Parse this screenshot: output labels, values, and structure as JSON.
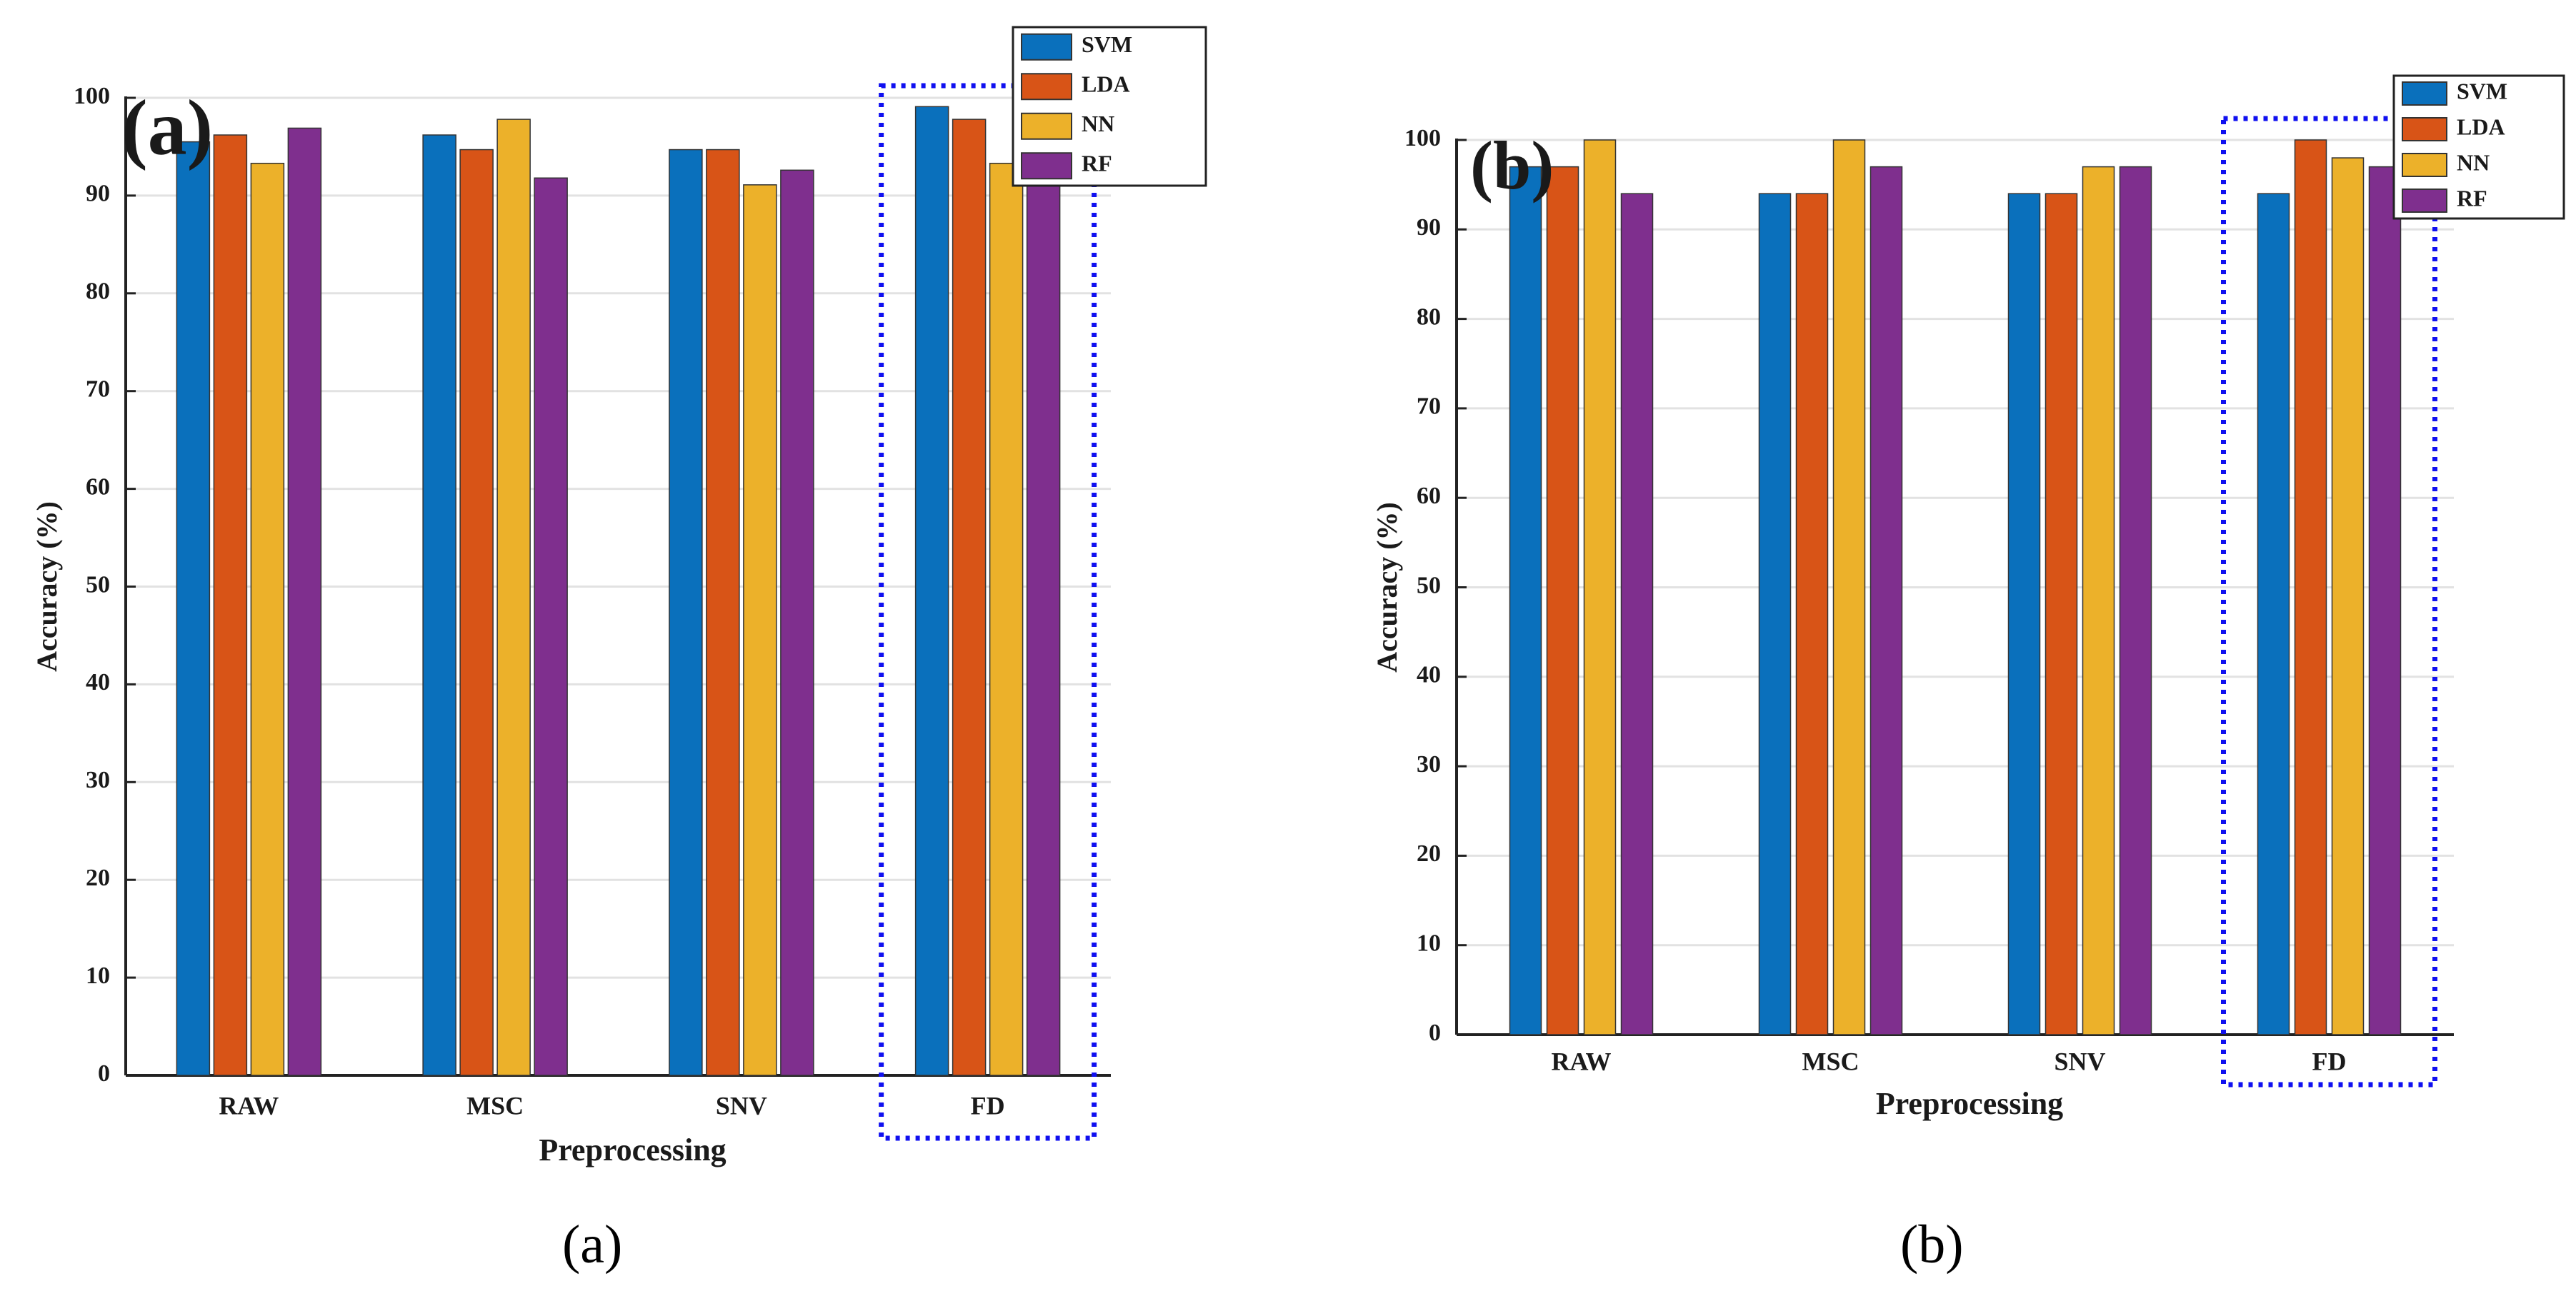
{
  "chart_data": [
    {
      "type": "bar",
      "panel_label": "(a)",
      "caption": "(a)",
      "categories": [
        "RAW",
        "MSC",
        "SNV",
        "FD"
      ],
      "series": [
        {
          "name": "SVM",
          "values": [
            95.5,
            96.2,
            94.7,
            99.1
          ]
        },
        {
          "name": "LDA",
          "values": [
            96.2,
            94.7,
            94.7,
            97.8
          ]
        },
        {
          "name": "NN",
          "values": [
            93.3,
            97.8,
            91.1,
            93.3
          ]
        },
        {
          "name": "RF",
          "values": [
            96.9,
            91.8,
            92.6,
            95.5
          ]
        }
      ],
      "xlabel": "Preprocessing",
      "ylabel": "Accuracy (%)",
      "ylim": [
        0,
        100
      ],
      "yticks": [
        0,
        10,
        20,
        30,
        40,
        50,
        60,
        70,
        80,
        90,
        100
      ],
      "grid": true,
      "legend": "top-right",
      "highlight_category": "FD"
    },
    {
      "type": "bar",
      "panel_label": "(b)",
      "caption": "(b)",
      "categories": [
        "RAW",
        "MSC",
        "SNV",
        "FD"
      ],
      "series": [
        {
          "name": "SVM",
          "values": [
            97,
            94,
            94,
            94
          ]
        },
        {
          "name": "LDA",
          "values": [
            97,
            94,
            94,
            100
          ]
        },
        {
          "name": "NN",
          "values": [
            100,
            100,
            97,
            98
          ]
        },
        {
          "name": "RF",
          "values": [
            94,
            97,
            97,
            97
          ]
        }
      ],
      "xlabel": "Preprocessing",
      "ylabel": "Accuracy (%)",
      "ylim": [
        0,
        100
      ],
      "yticks": [
        0,
        10,
        20,
        30,
        40,
        50,
        60,
        70,
        80,
        90,
        100
      ],
      "grid": true,
      "legend": "top-right",
      "highlight_category": "FD"
    }
  ],
  "colors": {
    "SVM": "#0a70bc",
    "LDA": "#d85417",
    "NN": "#ecb12a",
    "RF": "#7f2f8e",
    "highlight_box": "#1010f0",
    "grid": "#e2e2e2"
  }
}
